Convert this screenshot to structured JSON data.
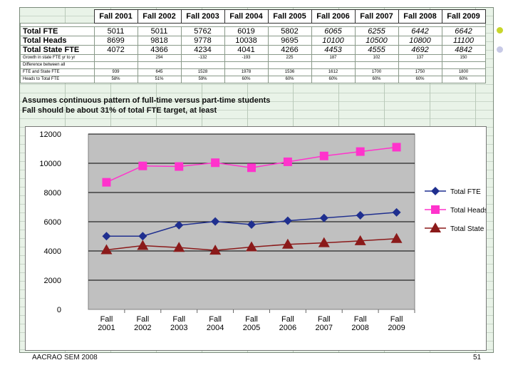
{
  "table": {
    "headers": [
      "Fall 2001",
      "Fall 2002",
      "Fall 2003",
      "Fall 2004",
      "Fall 2005",
      "Fall 2006",
      "Fall 2007",
      "Fall 2008",
      "Fall 2009"
    ],
    "rows": [
      {
        "label": "Total FTE",
        "values": [
          "5011",
          "5011",
          "5762",
          "6019",
          "5802",
          "6065",
          "6255",
          "6442",
          "6642"
        ]
      },
      {
        "label": "Total Heads",
        "values": [
          "8699",
          "9818",
          "9778",
          "10038",
          "9695",
          "10100",
          "10500",
          "10800",
          "11100"
        ]
      },
      {
        "label": "Total State FTE",
        "values": [
          "4072",
          "4366",
          "4234",
          "4041",
          "4266",
          "4453",
          "4555",
          "4692",
          "4842"
        ]
      }
    ],
    "small_rows": [
      {
        "label": "Growth in state FTE yr to yr",
        "values": [
          "",
          "294",
          "-132",
          "-193",
          "225",
          "187",
          "102",
          "137",
          "150"
        ]
      },
      {
        "label": "Difference between all",
        "values": [
          "",
          "",
          "",
          "",
          "",
          "",
          "",
          "",
          ""
        ]
      },
      {
        "label": "FTE and State FTE",
        "values": [
          "939",
          "645",
          "1528",
          "1978",
          "1536",
          "1612",
          "1700",
          "1750",
          "1800"
        ]
      },
      {
        "label": "Heads to Total FTE",
        "values": [
          "58%",
          "51%",
          "59%",
          "60%",
          "60%",
          "60%",
          "60%",
          "60%",
          "60%"
        ]
      }
    ]
  },
  "notes": {
    "line1": "Assumes continuous pattern of full-time versus part-time students",
    "line2": "Fall should be about 31% of total FTE target, at least"
  },
  "chart_data": {
    "type": "line",
    "categories": [
      "Fall 2001",
      "Fall 2002",
      "Fall 2003",
      "Fall 2004",
      "Fall 2005",
      "Fall 2006",
      "Fall 2007",
      "Fall 2008",
      "Fall 2009"
    ],
    "category_lines": [
      [
        "Fall",
        "2001"
      ],
      [
        "Fall",
        "2002"
      ],
      [
        "Fall",
        "2003"
      ],
      [
        "Fall",
        "2004"
      ],
      [
        "Fall",
        "2005"
      ],
      [
        "Fall",
        "2006"
      ],
      [
        "Fall",
        "2007"
      ],
      [
        "Fall",
        "2008"
      ],
      [
        "Fall",
        "2009"
      ]
    ],
    "series": [
      {
        "name": "Total FTE",
        "values": [
          5011,
          5011,
          5762,
          6019,
          5802,
          6065,
          6255,
          6442,
          6642
        ],
        "color": "#1f2f8f",
        "marker": "diamond"
      },
      {
        "name": "Total Heads",
        "values": [
          8699,
          9818,
          9778,
          10038,
          9695,
          10100,
          10500,
          10800,
          11100
        ],
        "color": "#ff33cc",
        "marker": "square"
      },
      {
        "name": "Total State FTE",
        "values": [
          4072,
          4366,
          4234,
          4041,
          4266,
          4453,
          4555,
          4692,
          4842
        ],
        "color": "#8b1a1a",
        "marker": "triangle"
      }
    ],
    "ylim": [
      0,
      12000
    ],
    "yticks": [
      "0",
      "2000",
      "4000",
      "6000",
      "8000",
      "10000",
      "12000"
    ],
    "grid": true,
    "legend": "right",
    "plot_background": "#c0c0c0"
  },
  "footer": {
    "left": "AACRAO SEM 2008",
    "page": "51"
  },
  "decorations": {
    "dot1": "#c8d62b",
    "dot2": "#c7c9e6"
  }
}
